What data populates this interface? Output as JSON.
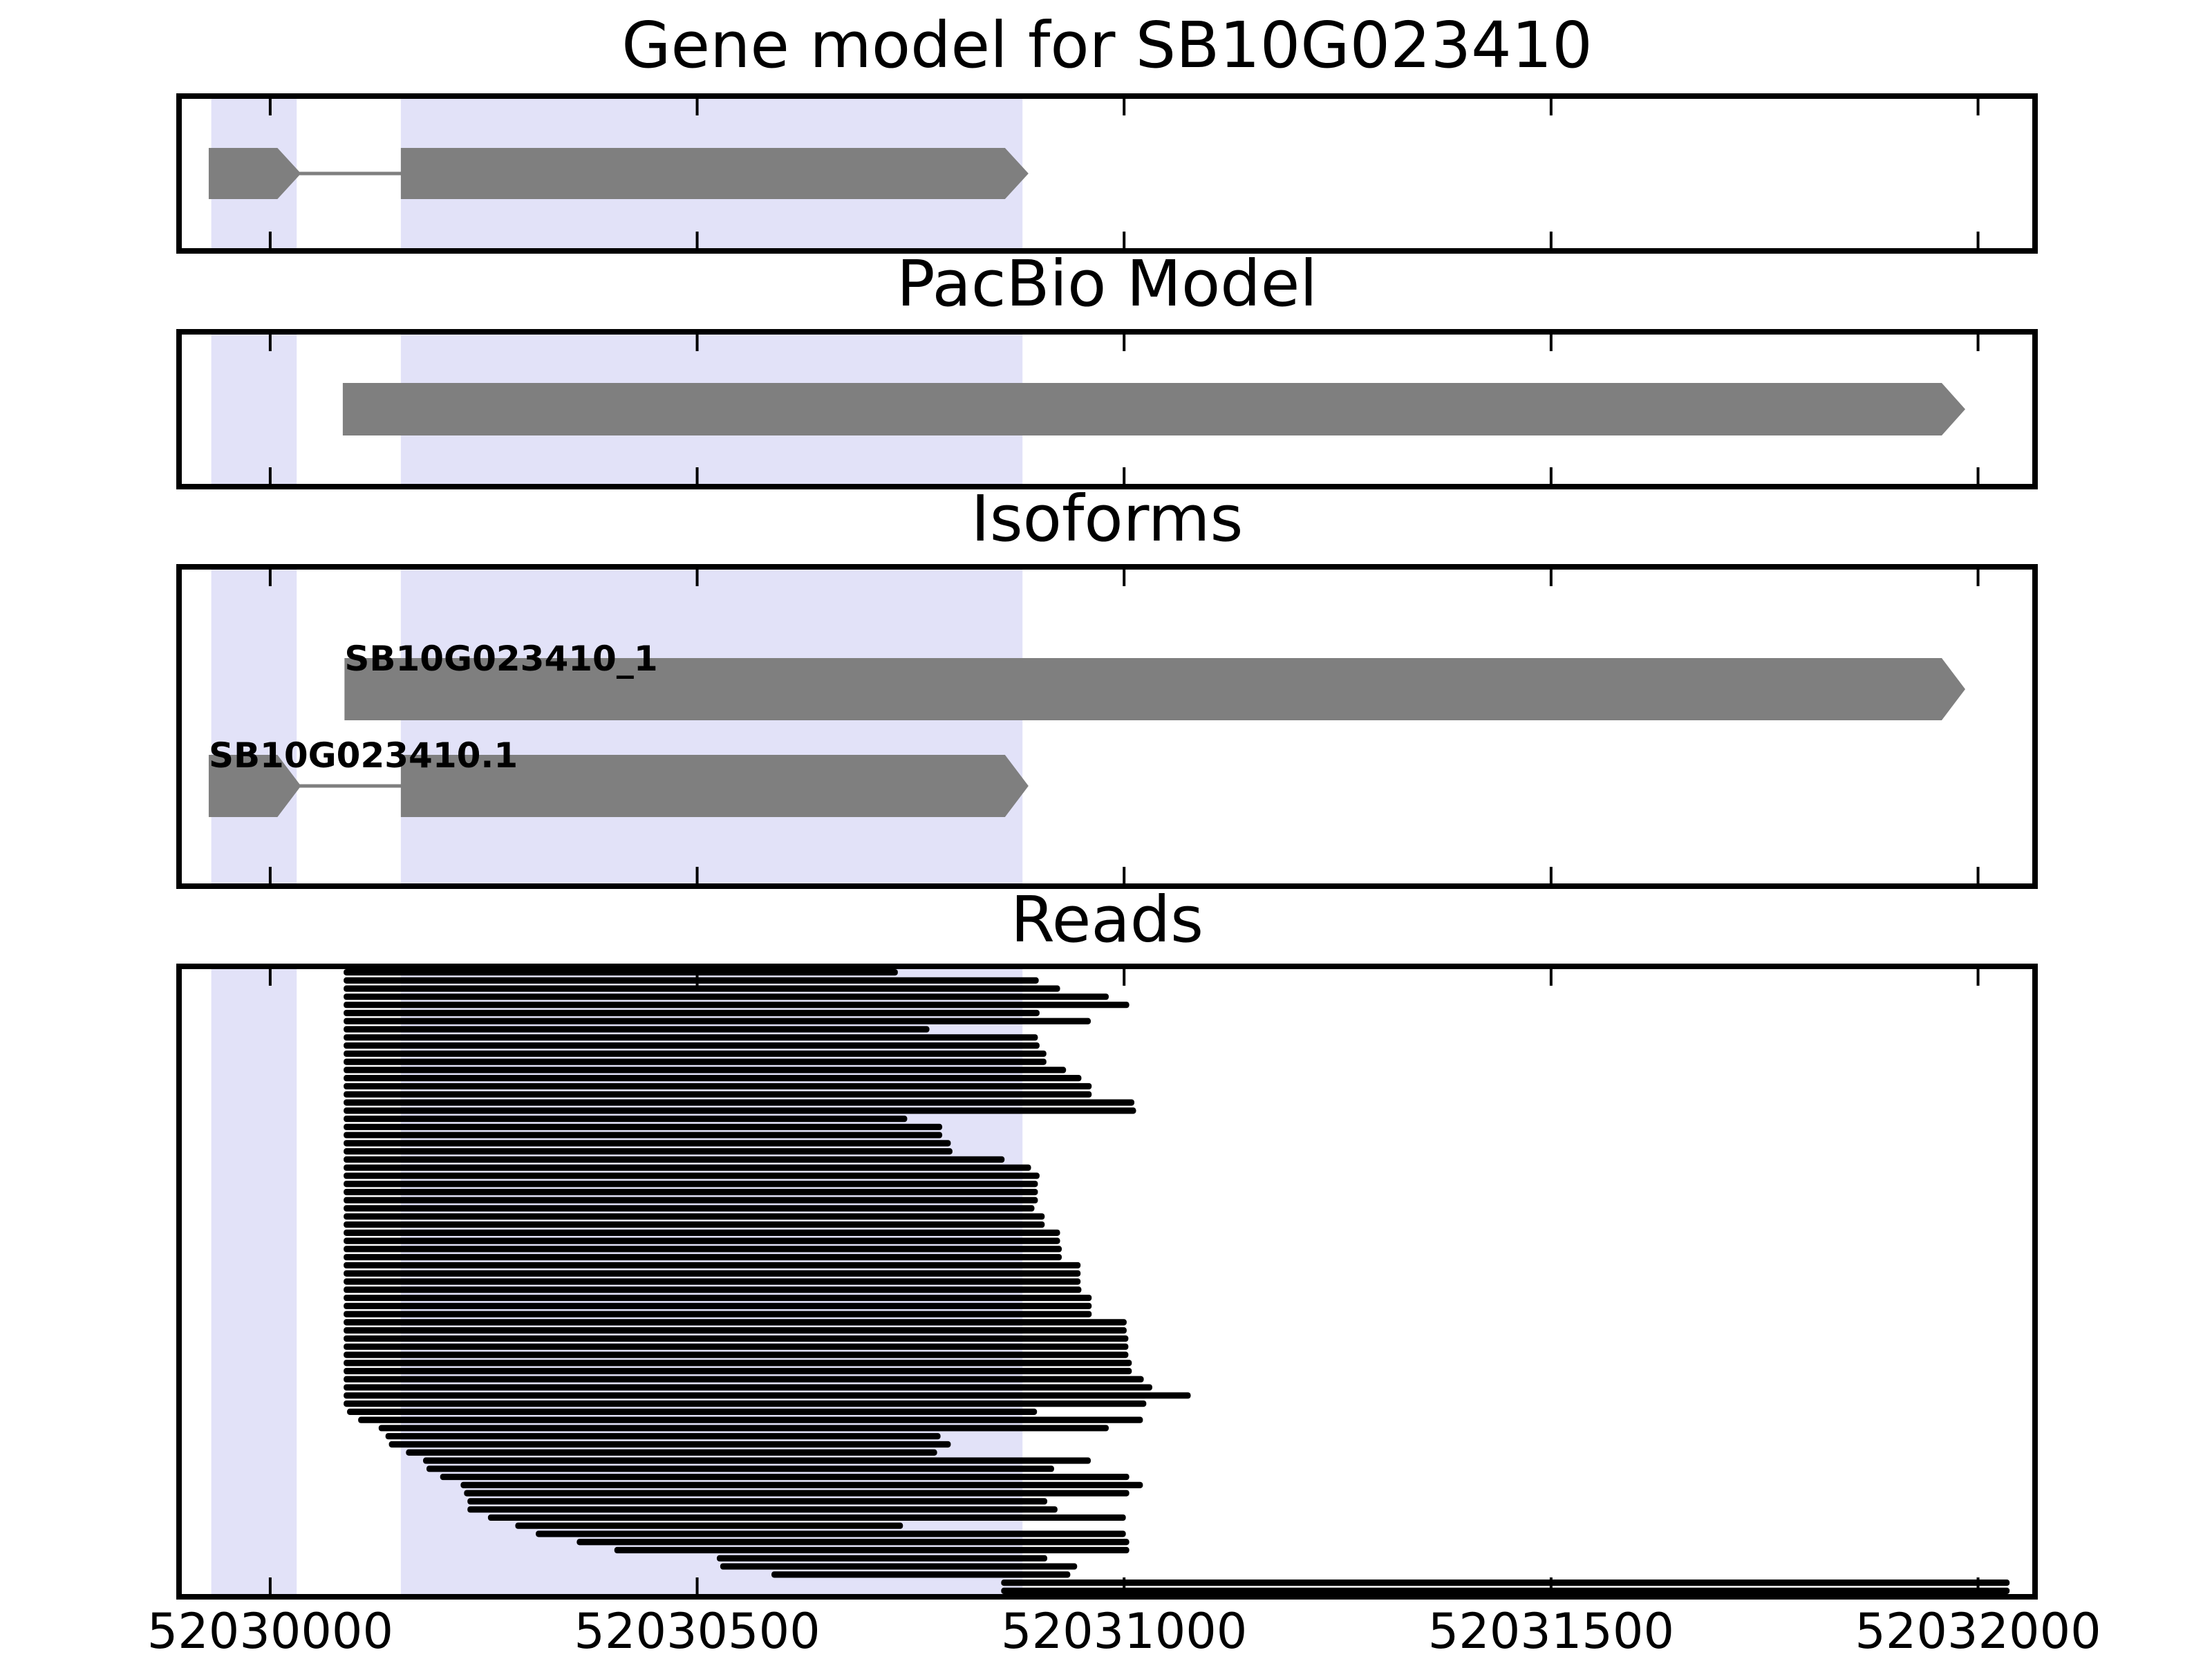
{
  "chart_data": {
    "type": "genome-tracks",
    "figure_title": "Gene model for SB10G023410",
    "x_axis": {
      "xlim": [
        52029890,
        52032070
      ],
      "ticks": [
        52030000,
        52030500,
        52031000,
        52031500,
        52032000
      ],
      "tick_labels": [
        "52030000",
        "52030500",
        "52031000",
        "52031500",
        "52032000"
      ]
    },
    "colors": {
      "feature_gray": "#7f7f7f",
      "highlight_band": "#e2e2f8",
      "read_black": "#000000",
      "frame": "#000000",
      "background": "#ffffff"
    },
    "highlight_regions": [
      [
        52029931,
        52030031
      ],
      [
        52030153,
        52030881
      ]
    ],
    "panels": [
      {
        "id": "gene-model",
        "title": "Gene model for SB10G023410",
        "type": "features",
        "rows": [
          {
            "label": "",
            "exons": [
              [
                52029928,
                52030036
              ],
              [
                52030153,
                52030888
              ]
            ]
          }
        ]
      },
      {
        "id": "pacbio",
        "title": "PacBio Model",
        "type": "features",
        "rows": [
          {
            "label": "",
            "exons": [
              [
                52030085,
                52031985
              ]
            ]
          }
        ]
      },
      {
        "id": "isoforms",
        "title": "Isoforms",
        "type": "features",
        "rows": [
          {
            "label": "SB10G023410_1",
            "exons": [
              [
                52030087,
                52031985
              ]
            ]
          },
          {
            "label": "SB10G023410.1",
            "exons": [
              [
                52029928,
                52030036
              ],
              [
                52030153,
                52030888
              ]
            ]
          }
        ]
      },
      {
        "id": "reads",
        "title": "Reads",
        "type": "reads",
        "reads": [
          [
            52030086,
            52030735
          ],
          [
            52030086,
            52030900
          ],
          [
            52030086,
            52030925
          ],
          [
            52030086,
            52030982
          ],
          [
            52030086,
            52031006
          ],
          [
            52030086,
            52030901
          ],
          [
            52030086,
            52030961
          ],
          [
            52030086,
            52030772
          ],
          [
            52030086,
            52030899
          ],
          [
            52030086,
            52030901
          ],
          [
            52030086,
            52030909
          ],
          [
            52030086,
            52030909
          ],
          [
            52030086,
            52030932
          ],
          [
            52030086,
            52030950
          ],
          [
            52030086,
            52030962
          ],
          [
            52030086,
            52030962
          ],
          [
            52030086,
            52031012
          ],
          [
            52030086,
            52031014
          ],
          [
            52030086,
            52030746
          ],
          [
            52030086,
            52030787
          ],
          [
            52030086,
            52030787
          ],
          [
            52030086,
            52030797
          ],
          [
            52030086,
            52030799
          ],
          [
            52030086,
            52030860
          ],
          [
            52030086,
            52030891
          ],
          [
            52030086,
            52030901
          ],
          [
            52030086,
            52030899
          ],
          [
            52030086,
            52030899
          ],
          [
            52030086,
            52030899
          ],
          [
            52030086,
            52030895
          ],
          [
            52030086,
            52030907
          ],
          [
            52030086,
            52030907
          ],
          [
            52030086,
            52030925
          ],
          [
            52030086,
            52030925
          ],
          [
            52030086,
            52030927
          ],
          [
            52030086,
            52030927
          ],
          [
            52030086,
            52030949
          ],
          [
            52030086,
            52030949
          ],
          [
            52030086,
            52030949
          ],
          [
            52030086,
            52030950
          ],
          [
            52030086,
            52030962
          ],
          [
            52030086,
            52030962
          ],
          [
            52030086,
            52030962
          ],
          [
            52030086,
            52031003
          ],
          [
            52030086,
            52031003
          ],
          [
            52030086,
            52031005
          ],
          [
            52030086,
            52031005
          ],
          [
            52030086,
            52031005
          ],
          [
            52030086,
            52031009
          ],
          [
            52030086,
            52031009
          ],
          [
            52030086,
            52031023
          ],
          [
            52030086,
            52031033
          ],
          [
            52030086,
            52031078
          ],
          [
            52030086,
            52031026
          ],
          [
            52030090,
            52030898
          ],
          [
            52030103,
            52031022
          ],
          [
            52030127,
            52030982
          ],
          [
            52030135,
            52030785
          ],
          [
            52030139,
            52030797
          ],
          [
            52030159,
            52030781
          ],
          [
            52030179,
            52030961
          ],
          [
            52030183,
            52030918
          ],
          [
            52030199,
            52031006
          ],
          [
            52030223,
            52031022
          ],
          [
            52030227,
            52031006
          ],
          [
            52030231,
            52030910
          ],
          [
            52030231,
            52030922
          ],
          [
            52030255,
            52031002
          ],
          [
            52030287,
            52030741
          ],
          [
            52030311,
            52031002
          ],
          [
            52030359,
            52031006
          ],
          [
            52030403,
            52031006
          ],
          [
            52030523,
            52030910
          ],
          [
            52030527,
            52030945
          ],
          [
            52030587,
            52030937
          ],
          [
            52030856,
            52032037
          ],
          [
            52030856,
            52032037
          ]
        ]
      }
    ]
  }
}
